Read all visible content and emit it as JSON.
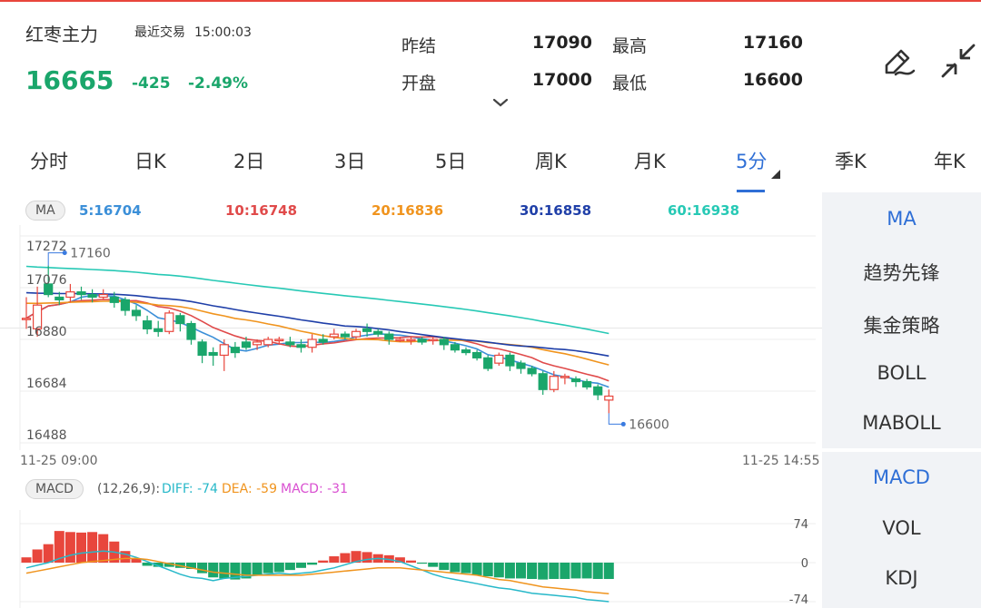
{
  "header": {
    "name": "红枣主力",
    "status": "最近交易",
    "time": "15:00:03",
    "price": "16665",
    "change": "-425",
    "change_pct": "-2.49%",
    "quotes": [
      {
        "label": "昨结",
        "value": "17090"
      },
      {
        "label": "最高",
        "value": "17160"
      },
      {
        "label": "开盘",
        "value": "17000"
      },
      {
        "label": "最低",
        "value": "16600"
      }
    ]
  },
  "tabs": [
    {
      "label": "分时"
    },
    {
      "label": "日K"
    },
    {
      "label": "2日"
    },
    {
      "label": "3日"
    },
    {
      "label": "5日"
    },
    {
      "label": "周K"
    },
    {
      "label": "月K"
    },
    {
      "label": "5分",
      "active": true
    },
    {
      "label": "季K"
    },
    {
      "label": "年K"
    }
  ],
  "ma_panel": {
    "pill": "MA",
    "legend": [
      {
        "text": "5:16704",
        "color": "#3b8fd8"
      },
      {
        "text": "10:16748",
        "color": "#e04a4a"
      },
      {
        "text": "20:16836",
        "color": "#f0941e"
      },
      {
        "text": "30:16858",
        "color": "#1f3fa8"
      },
      {
        "text": "60:16938",
        "color": "#27c9b5"
      }
    ],
    "y_labels": [
      "17272",
      "17076",
      "16880",
      "16684",
      "16488"
    ],
    "high_label": "17160",
    "low_label": "16600",
    "time_start": "11-25 09:00",
    "time_end": "11-25 14:55"
  },
  "macd_panel": {
    "pill": "MACD",
    "params": "(12,26,9):",
    "diff": "DIFF: -74",
    "dea": "DEA: -59",
    "macd": "MACD: -31",
    "y_labels": [
      "74",
      "0",
      "-74"
    ]
  },
  "side_menu_top": [
    {
      "label": "MA",
      "active": true
    },
    {
      "label": "趋势先锋"
    },
    {
      "label": "集金策略"
    },
    {
      "label": "BOLL"
    },
    {
      "label": "MABOLL"
    }
  ],
  "side_menu_bottom": [
    {
      "label": "MACD",
      "active": true
    },
    {
      "label": "VOL"
    },
    {
      "label": "KDJ"
    }
  ],
  "colors": {
    "up": "#e8463c",
    "down": "#1aa66b",
    "accent": "#2f6fd6",
    "diff": "#27b8c9",
    "dea": "#f0941e",
    "macd": "#d94fd1"
  },
  "chart_data": {
    "type": "candlestick",
    "interval": "5分",
    "ylim": [
      16488,
      17272
    ],
    "candles": [
      {
        "o": 16960,
        "c": 16960,
        "h": 17040,
        "l": 16920
      },
      {
        "o": 16920,
        "c": 17010,
        "h": 17080,
        "l": 16890
      },
      {
        "o": 17090,
        "c": 17050,
        "h": 17160,
        "l": 17040
      },
      {
        "o": 17040,
        "c": 17030,
        "h": 17060,
        "l": 17010
      },
      {
        "o": 17040,
        "c": 17060,
        "h": 17090,
        "l": 17020
      },
      {
        "o": 17060,
        "c": 17050,
        "h": 17080,
        "l": 17030
      },
      {
        "o": 17050,
        "c": 17040,
        "h": 17070,
        "l": 17020
      },
      {
        "o": 17040,
        "c": 17050,
        "h": 17070,
        "l": 17030
      },
      {
        "o": 17040,
        "c": 17020,
        "h": 17060,
        "l": 17000
      },
      {
        "o": 17030,
        "c": 16990,
        "h": 17040,
        "l": 16970
      },
      {
        "o": 16990,
        "c": 16970,
        "h": 17010,
        "l": 16950
      },
      {
        "o": 16950,
        "c": 16920,
        "h": 16970,
        "l": 16900
      },
      {
        "o": 16920,
        "c": 16910,
        "h": 16950,
        "l": 16890
      },
      {
        "o": 16910,
        "c": 16980,
        "h": 16990,
        "l": 16900
      },
      {
        "o": 16970,
        "c": 16940,
        "h": 16980,
        "l": 16910
      },
      {
        "o": 16940,
        "c": 16880,
        "h": 16950,
        "l": 16860
      },
      {
        "o": 16870,
        "c": 16820,
        "h": 16880,
        "l": 16790
      },
      {
        "o": 16830,
        "c": 16820,
        "h": 16850,
        "l": 16780
      },
      {
        "o": 16820,
        "c": 16860,
        "h": 16880,
        "l": 16760
      },
      {
        "o": 16850,
        "c": 16830,
        "h": 16870,
        "l": 16810
      },
      {
        "o": 16870,
        "c": 16850,
        "h": 16890,
        "l": 16840
      },
      {
        "o": 16860,
        "c": 16870,
        "h": 16880,
        "l": 16840
      },
      {
        "o": 16860,
        "c": 16880,
        "h": 16890,
        "l": 16850
      },
      {
        "o": 16880,
        "c": 16880,
        "h": 16890,
        "l": 16860
      },
      {
        "o": 16870,
        "c": 16860,
        "h": 16890,
        "l": 16850
      },
      {
        "o": 16860,
        "c": 16850,
        "h": 16880,
        "l": 16830
      },
      {
        "o": 16850,
        "c": 16880,
        "h": 16900,
        "l": 16830
      },
      {
        "o": 16880,
        "c": 16870,
        "h": 16900,
        "l": 16860
      },
      {
        "o": 16890,
        "c": 16900,
        "h": 16920,
        "l": 16880
      },
      {
        "o": 16900,
        "c": 16890,
        "h": 16910,
        "l": 16880
      },
      {
        "o": 16890,
        "c": 16910,
        "h": 16920,
        "l": 16880
      },
      {
        "o": 16920,
        "c": 16910,
        "h": 16940,
        "l": 16890
      },
      {
        "o": 16910,
        "c": 16900,
        "h": 16920,
        "l": 16890
      },
      {
        "o": 16900,
        "c": 16880,
        "h": 16910,
        "l": 16860
      },
      {
        "o": 16880,
        "c": 16880,
        "h": 16890,
        "l": 16870
      },
      {
        "o": 16880,
        "c": 16880,
        "h": 16890,
        "l": 16860
      },
      {
        "o": 16880,
        "c": 16870,
        "h": 16890,
        "l": 16860
      },
      {
        "o": 16880,
        "c": 16880,
        "h": 16890,
        "l": 16860
      },
      {
        "o": 16880,
        "c": 16860,
        "h": 16890,
        "l": 16840
      },
      {
        "o": 16860,
        "c": 16840,
        "h": 16870,
        "l": 16830
      },
      {
        "o": 16840,
        "c": 16830,
        "h": 16850,
        "l": 16820
      },
      {
        "o": 16830,
        "c": 16810,
        "h": 16840,
        "l": 16800
      },
      {
        "o": 16810,
        "c": 16770,
        "h": 16820,
        "l": 16760
      },
      {
        "o": 16790,
        "c": 16820,
        "h": 16830,
        "l": 16780
      },
      {
        "o": 16820,
        "c": 16780,
        "h": 16830,
        "l": 16760
      },
      {
        "o": 16790,
        "c": 16770,
        "h": 16800,
        "l": 16750
      },
      {
        "o": 16770,
        "c": 16750,
        "h": 16780,
        "l": 16740
      },
      {
        "o": 16750,
        "c": 16690,
        "h": 16760,
        "l": 16670
      },
      {
        "o": 16690,
        "c": 16740,
        "h": 16760,
        "l": 16680
      },
      {
        "o": 16740,
        "c": 16740,
        "h": 16750,
        "l": 16710
      },
      {
        "o": 16730,
        "c": 16720,
        "h": 16740,
        "l": 16700
      },
      {
        "o": 16720,
        "c": 16700,
        "h": 16730,
        "l": 16690
      },
      {
        "o": 16700,
        "c": 16670,
        "h": 16710,
        "l": 16650
      },
      {
        "o": 16650,
        "c": 16665,
        "h": 16690,
        "l": 16600
      }
    ],
    "macd_values": [
      10,
      25,
      35,
      60,
      58,
      57,
      58,
      54,
      40,
      22,
      8,
      -6,
      -8,
      -8,
      -10,
      -12,
      -20,
      -28,
      -30,
      -32,
      -30,
      -24,
      -20,
      -18,
      -14,
      -10,
      -4,
      4,
      12,
      18,
      22,
      20,
      16,
      14,
      10,
      4,
      -2,
      -8,
      -14,
      -18,
      -20,
      -24,
      -26,
      -28,
      -30,
      -30,
      -31,
      -32,
      -31,
      -31,
      -30,
      -30,
      -31,
      -31
    ],
    "diff_values": [
      -10,
      -5,
      0,
      8,
      14,
      18,
      20,
      22,
      20,
      16,
      10,
      2,
      -6,
      -14,
      -22,
      -28,
      -30,
      -34,
      -30,
      -28,
      -26,
      -24,
      -22,
      -20,
      -22,
      -20,
      -18,
      -14,
      -10,
      -4,
      2,
      6,
      8,
      6,
      2,
      -6,
      -14,
      -22,
      -28,
      -32,
      -36,
      -40,
      -44,
      -48,
      -50,
      -54,
      -58,
      -60,
      -62,
      -64,
      -66,
      -70,
      -72,
      -74
    ],
    "dea_values": [
      -20,
      -16,
      -12,
      -8,
      -4,
      0,
      2,
      4,
      6,
      8,
      8,
      6,
      2,
      -2,
      -6,
      -10,
      -14,
      -18,
      -20,
      -22,
      -24,
      -24,
      -24,
      -24,
      -24,
      -24,
      -22,
      -20,
      -18,
      -16,
      -14,
      -12,
      -10,
      -10,
      -10,
      -12,
      -14,
      -16,
      -18,
      -20,
      -22,
      -24,
      -28,
      -32,
      -34,
      -38,
      -42,
      -46,
      -48,
      -50,
      -52,
      -55,
      -57,
      -59
    ],
    "macd_ylim": [
      -74,
      74
    ]
  }
}
